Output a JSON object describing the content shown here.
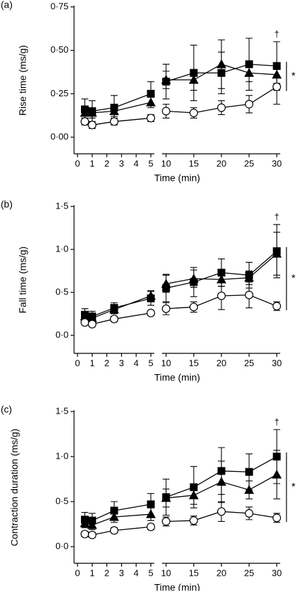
{
  "chart_data": [
    {
      "type": "line",
      "panel_label": "(a)",
      "y_label": "Rise time (ms/g)",
      "x_label": "Time (min)",
      "x": [
        0.5,
        1,
        2.5,
        5,
        10,
        15,
        20,
        25,
        30
      ],
      "xticks": [
        0,
        1,
        2,
        3,
        4,
        5,
        10,
        15,
        20,
        25,
        30
      ],
      "x_segments": [
        [
          0,
          5
        ],
        [
          10,
          30
        ]
      ],
      "ylim": [
        0,
        0.75
      ],
      "yticks": [
        {
          "value": 0,
          "label": "0·00"
        },
        {
          "value": 0.25,
          "label": "0·25"
        },
        {
          "value": 0.5,
          "label": "0·50"
        },
        {
          "value": 0.75,
          "label": "0·75"
        }
      ],
      "series": [
        {
          "marker": "square",
          "color": "#000000",
          "fill": "#000000",
          "values": [
            0.16,
            0.15,
            0.17,
            0.25,
            0.32,
            0.37,
            0.37,
            0.42,
            0.41
          ],
          "errors": [
            0.06,
            0.06,
            0.07,
            0.07,
            0.1,
            0.16,
            0.12,
            0.15,
            0.14
          ]
        },
        {
          "marker": "triangle",
          "color": "#000000",
          "fill": "#000000",
          "values": [
            0.14,
            0.14,
            0.15,
            0.2,
            0.33,
            0.33,
            0.42,
            0.37,
            0.36
          ],
          "errors": [
            0.03,
            0.03,
            0.03,
            0.03,
            0.05,
            0.06,
            0.14,
            0.05,
            0.05
          ]
        },
        {
          "marker": "circle",
          "color": "#000000",
          "fill": "#ffffff",
          "values": [
            0.09,
            0.07,
            0.09,
            0.11,
            0.15,
            0.14,
            0.17,
            0.19,
            0.29
          ],
          "errors": [
            0.02,
            0.02,
            0.02,
            0.02,
            0.04,
            0.03,
            0.04,
            0.05,
            0.1
          ]
        }
      ],
      "dagger": "†",
      "significance": "*"
    },
    {
      "type": "line",
      "panel_label": "(b)",
      "y_label": "Fall time (ms/g)",
      "x_label": "Time (min)",
      "x": [
        0.5,
        1,
        2.5,
        5,
        10,
        15,
        20,
        25,
        30
      ],
      "xticks": [
        0,
        1,
        2,
        3,
        4,
        5,
        10,
        15,
        20,
        25,
        30
      ],
      "x_segments": [
        [
          0,
          5
        ],
        [
          10,
          30
        ]
      ],
      "ylim": [
        0,
        1.5
      ],
      "yticks": [
        {
          "value": 0,
          "label": "0·0"
        },
        {
          "value": 0.5,
          "label": "0·5"
        },
        {
          "value": 1,
          "label": "1·0"
        },
        {
          "value": 1.5,
          "label": "1·5"
        }
      ],
      "series": [
        {
          "marker": "square",
          "color": "#000000",
          "fill": "#000000",
          "values": [
            0.24,
            0.22,
            0.32,
            0.43,
            0.55,
            0.62,
            0.73,
            0.7,
            0.98
          ],
          "errors": [
            0.07,
            0.06,
            0.06,
            0.08,
            0.16,
            0.17,
            0.16,
            0.15,
            0.31
          ]
        },
        {
          "marker": "triangle",
          "color": "#000000",
          "fill": "#000000",
          "values": [
            0.22,
            0.2,
            0.3,
            0.46,
            0.6,
            0.66,
            0.65,
            0.67,
            0.95
          ],
          "errors": [
            0.05,
            0.05,
            0.05,
            0.06,
            0.1,
            0.1,
            0.08,
            0.08,
            0.25
          ]
        },
        {
          "marker": "circle",
          "color": "#000000",
          "fill": "#ffffff",
          "values": [
            0.15,
            0.13,
            0.19,
            0.26,
            0.31,
            0.33,
            0.46,
            0.47,
            0.34
          ],
          "errors": [
            0.03,
            0.03,
            0.03,
            0.03,
            0.07,
            0.06,
            0.16,
            0.15,
            0.05
          ]
        }
      ],
      "dagger": "†",
      "significance": "*"
    },
    {
      "type": "line",
      "panel_label": "(c)",
      "y_label": "Contraction duration (ms/g)",
      "x_label": "Time (min)",
      "x": [
        0.5,
        1,
        2.5,
        5,
        10,
        15,
        20,
        25,
        30
      ],
      "xticks": [
        0,
        1,
        2,
        3,
        4,
        5,
        10,
        15,
        20,
        25,
        30
      ],
      "x_segments": [
        [
          0,
          5
        ],
        [
          10,
          30
        ]
      ],
      "ylim": [
        0,
        1.5
      ],
      "yticks": [
        {
          "value": 0,
          "label": "0·0"
        },
        {
          "value": 0.5,
          "label": "0·5"
        },
        {
          "value": 1,
          "label": "1·0"
        },
        {
          "value": 1.5,
          "label": "1·5"
        }
      ],
      "series": [
        {
          "marker": "square",
          "color": "#000000",
          "fill": "#000000",
          "values": [
            0.3,
            0.29,
            0.4,
            0.47,
            0.55,
            0.66,
            0.84,
            0.83,
            1.0
          ],
          "errors": [
            0.08,
            0.08,
            0.1,
            0.12,
            0.2,
            0.23,
            0.26,
            0.2,
            0.3
          ]
        },
        {
          "marker": "triangle",
          "color": "#000000",
          "fill": "#000000",
          "values": [
            0.26,
            0.24,
            0.33,
            0.36,
            0.54,
            0.57,
            0.72,
            0.63,
            0.8
          ],
          "errors": [
            0.05,
            0.05,
            0.06,
            0.07,
            0.1,
            0.1,
            0.23,
            0.1,
            0.27
          ]
        },
        {
          "marker": "circle",
          "color": "#000000",
          "fill": "#ffffff",
          "values": [
            0.14,
            0.13,
            0.18,
            0.22,
            0.28,
            0.29,
            0.39,
            0.37,
            0.32
          ],
          "errors": [
            0.03,
            0.03,
            0.03,
            0.03,
            0.05,
            0.05,
            0.11,
            0.07,
            0.05
          ]
        }
      ],
      "dagger": "†",
      "significance": "*"
    }
  ]
}
